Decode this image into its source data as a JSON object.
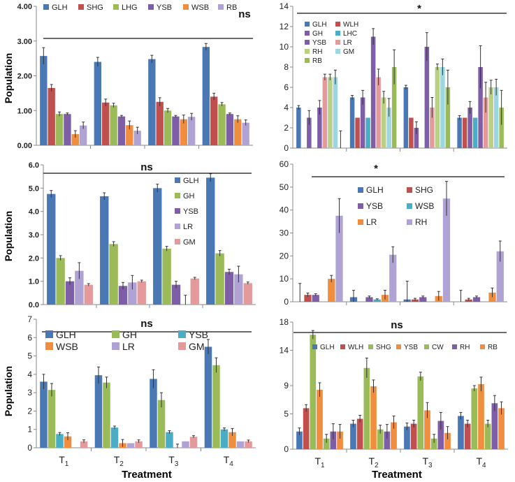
{
  "figure": {
    "ylabel": "Population",
    "xlabel": "Treatment"
  },
  "colors": {
    "GLH": "#4a78b5",
    "SHG": "#c0504d",
    "LHG": "#9bbb59",
    "YSB": "#7f5ea8",
    "WSB": "#f08d3e",
    "RB": "#b0a3d3",
    "WLH": "#c0504d",
    "GH": "#7f5ea8",
    "LHC": "#4bacc6",
    "LR": "#e49a9a",
    "RH": "#b8cf84",
    "GM": "#9dd6e1",
    "CW": "#9bbb59"
  },
  "chart_data": [
    {
      "type": "bar",
      "sig": "ns",
      "categories": [
        "T1",
        "T2",
        "T3",
        "T4"
      ],
      "ylim": [
        0,
        4
      ],
      "yticks": [
        0,
        1,
        2,
        3,
        4
      ],
      "yfmt": 2,
      "legend_layout": "top-row",
      "series": [
        {
          "name": "GLH",
          "key": "GLH",
          "values": [
            2.57,
            2.4,
            2.48,
            2.83
          ],
          "err": [
            0.24,
            0.13,
            0.11,
            0.1
          ]
        },
        {
          "name": "SHG",
          "key": "SHG",
          "values": [
            1.65,
            1.23,
            1.25,
            1.4
          ],
          "err": [
            0.1,
            0.1,
            0.12,
            0.1
          ]
        },
        {
          "name": "LHG",
          "key": "LHG",
          "values": [
            0.9,
            1.15,
            1.0,
            1.18
          ],
          "err": [
            0.06,
            0.06,
            0.06,
            0.05
          ]
        },
        {
          "name": "YSB",
          "key": "YSB",
          "values": [
            0.9,
            0.83,
            0.83,
            0.9
          ],
          "err": [
            0.03,
            0.03,
            0.03,
            0.03
          ]
        },
        {
          "name": "WSB",
          "key": "WSB",
          "values": [
            0.32,
            0.58,
            0.75,
            0.75
          ],
          "err": [
            0.1,
            0.12,
            0.12,
            0.1
          ]
        },
        {
          "name": "RB",
          "key": "RB",
          "values": [
            0.57,
            0.42,
            0.82,
            0.65
          ],
          "err": [
            0.1,
            0.1,
            0.1,
            0.08
          ]
        }
      ]
    },
    {
      "type": "bar",
      "sig": "*",
      "categories": [
        "T1",
        "T2",
        "T3",
        "T4"
      ],
      "ylim": [
        0,
        14
      ],
      "yticks": [
        0,
        2,
        4,
        6,
        8,
        10,
        12,
        14
      ],
      "yfmt": 0,
      "legend_layout": "grid2",
      "series": [
        {
          "name": "GLH",
          "key": "GLH",
          "values": [
            4,
            5,
            6,
            3
          ],
          "err": [
            0.2,
            0.2,
            0.2,
            0.2
          ]
        },
        {
          "name": "WLH",
          "key": "WLH",
          "values": [
            0,
            3,
            3,
            3
          ],
          "err": [
            0,
            0,
            0,
            0
          ]
        },
        {
          "name": "GH",
          "key": "GH",
          "values": [
            3,
            5,
            2,
            4
          ],
          "err": [
            0.7,
            0.7,
            0.6,
            0.6
          ]
        },
        {
          "name": "LHC",
          "key": "LHC",
          "values": [
            0,
            3,
            0,
            3
          ],
          "err": [
            0,
            0,
            0,
            0
          ]
        },
        {
          "name": "YSB",
          "key": "YSB",
          "values": [
            4,
            11,
            10,
            8
          ],
          "err": [
            0.7,
            0.8,
            1.4,
            2.1
          ]
        },
        {
          "name": "LR",
          "key": "LR",
          "values": [
            7,
            7,
            4,
            5
          ],
          "err": [
            0.3,
            0.8,
            1.0,
            1.5
          ]
        },
        {
          "name": "RH",
          "key": "RH",
          "values": [
            7,
            5,
            8,
            6
          ],
          "err": [
            0.3,
            0.6,
            0.3,
            0.7
          ]
        },
        {
          "name": "GM",
          "key": "GM",
          "values": [
            7,
            4,
            8,
            6
          ],
          "err": [
            0.7,
            0.9,
            0.8,
            0.8
          ]
        },
        {
          "name": "RB",
          "key": "LHG",
          "values": [
            0,
            8,
            6,
            4
          ],
          "err": [
            1.7,
            1.7,
            1.7,
            1.7
          ]
        }
      ]
    },
    {
      "type": "bar",
      "sig": "ns",
      "categories": [
        "T1",
        "T2",
        "T3",
        "T4"
      ],
      "ylim": [
        0,
        6
      ],
      "yticks": [
        0,
        1,
        2,
        3,
        4,
        5,
        6
      ],
      "yfmt": 1,
      "legend_layout": "column",
      "series": [
        {
          "name": "GLH",
          "key": "GLH",
          "values": [
            4.75,
            4.65,
            5.0,
            5.45
          ],
          "err": [
            0.15,
            0.15,
            0.17,
            0.17
          ]
        },
        {
          "name": "GH",
          "key": "LHG",
          "values": [
            2.0,
            2.6,
            2.4,
            2.2
          ],
          "err": [
            0.1,
            0.1,
            0.1,
            0.12
          ]
        },
        {
          "name": "YSB",
          "key": "YSB",
          "values": [
            1.0,
            0.8,
            0.85,
            1.4
          ],
          "err": [
            0.15,
            0.15,
            0.15,
            0.12
          ]
        },
        {
          "name": "LR",
          "key": "RB",
          "values": [
            1.45,
            0.95,
            0.0,
            1.3
          ],
          "err": [
            0.35,
            0.3,
            0.4,
            0.35
          ]
        },
        {
          "name": "GM",
          "key": "LR",
          "values": [
            0.85,
            1.0,
            1.12,
            0.92
          ],
          "err": [
            0.05,
            0.05,
            0.05,
            0.05
          ]
        }
      ]
    },
    {
      "type": "bar",
      "sig": "*",
      "categories": [
        "T1",
        "T2",
        "T3",
        "T4"
      ],
      "ylim": [
        0,
        60
      ],
      "yticks": [
        0,
        10,
        20,
        30,
        40,
        50,
        60
      ],
      "yfmt": 0,
      "legend_layout": "grid2",
      "series": [
        {
          "name": "GLH",
          "key": "GLH",
          "values": [
            0,
            2,
            1,
            0
          ],
          "err": [
            8,
            3,
            8,
            5
          ]
        },
        {
          "name": "SHG",
          "key": "SHG",
          "values": [
            3,
            0,
            1,
            1
          ],
          "err": [
            0.8,
            0,
            0.5,
            0.5
          ]
        },
        {
          "name": "YSB",
          "key": "YSB",
          "values": [
            3,
            2,
            2,
            2
          ],
          "err": [
            0.5,
            0.5,
            0.5,
            0.5
          ]
        },
        {
          "name": "WSB",
          "key": "LHC",
          "values": [
            0,
            1,
            0,
            0
          ],
          "err": [
            0,
            0.3,
            0,
            0
          ]
        },
        {
          "name": "LR",
          "key": "WSB",
          "values": [
            10,
            3,
            2.5,
            4
          ],
          "err": [
            1.5,
            2,
            2,
            2
          ]
        },
        {
          "name": "RH",
          "key": "RB",
          "values": [
            37.5,
            20.5,
            45,
            22
          ],
          "err": [
            7.5,
            3.5,
            7.5,
            4.5
          ]
        }
      ]
    },
    {
      "type": "bar",
      "sig": "ns",
      "categories": [
        "T1",
        "T2",
        "T3",
        "T4"
      ],
      "ylim": [
        0,
        7
      ],
      "yticks": [
        0,
        1,
        2,
        3,
        4,
        5,
        6,
        7
      ],
      "yfmt": 0,
      "legend_layout": "grid3",
      "series": [
        {
          "name": "GLH",
          "key": "GLH",
          "values": [
            3.6,
            3.95,
            3.75,
            5.5
          ],
          "err": [
            0.4,
            0.45,
            0.5,
            0.4
          ]
        },
        {
          "name": "GH",
          "key": "LHG",
          "values": [
            3.15,
            3.55,
            2.6,
            4.5
          ],
          "err": [
            0.35,
            0.3,
            0.4,
            0.4
          ]
        },
        {
          "name": "YSB",
          "key": "LHC",
          "values": [
            0.75,
            1.1,
            0.85,
            1.0
          ],
          "err": [
            0.08,
            0.08,
            0.08,
            0.08
          ]
        },
        {
          "name": "WSB",
          "key": "WSB",
          "values": [
            0.62,
            0.25,
            0.0,
            0.85
          ],
          "err": [
            0.2,
            0.2,
            0.2,
            0.2
          ]
        },
        {
          "name": "LR",
          "key": "RB",
          "values": [
            0.0,
            0.25,
            0.35,
            0.35
          ],
          "err": [
            0,
            0,
            0,
            0
          ]
        },
        {
          "name": "GM",
          "key": "LR",
          "values": [
            0.35,
            0.35,
            0.6,
            0.35
          ],
          "err": [
            0.08,
            0.08,
            0.06,
            0.07
          ]
        }
      ]
    },
    {
      "type": "bar",
      "sig": "ns",
      "categories": [
        "T1",
        "T2",
        "T3",
        "T4"
      ],
      "ylim": [
        0,
        18
      ],
      "yticks": [
        0,
        5,
        9,
        14,
        18
      ],
      "yfmt": 0,
      "legend_layout": "row7",
      "series": [
        {
          "name": "GLH",
          "key": "GLH",
          "values": [
            2.5,
            3.6,
            3.2,
            4.7
          ],
          "err": [
            0.5,
            0.5,
            0.5,
            0.5
          ]
        },
        {
          "name": "WLH",
          "key": "SHG",
          "values": [
            5.8,
            4.3,
            3.6,
            3.6
          ],
          "err": [
            0.5,
            0.5,
            0.5,
            0.5
          ]
        },
        {
          "name": "SHG",
          "key": "LHG",
          "values": [
            16.2,
            11.5,
            10.3,
            8.6
          ],
          "err": [
            0.6,
            1.4,
            0.6,
            0.4
          ]
        },
        {
          "name": "YSB",
          "key": "WSB",
          "values": [
            8.4,
            8.9,
            5.5,
            9.2
          ],
          "err": [
            1.0,
            0.9,
            1.1,
            1.0
          ]
        },
        {
          "name": "CW",
          "key": "CW",
          "values": [
            1.5,
            2.8,
            1.5,
            3.6
          ],
          "err": [
            0.6,
            0.6,
            0.6,
            0.5
          ]
        },
        {
          "name": "RH",
          "key": "YSB",
          "values": [
            2.5,
            2.5,
            4.0,
            6.5
          ],
          "err": [
            1.1,
            1.0,
            1.2,
            1.1
          ]
        },
        {
          "name": "RB",
          "key": "WSB",
          "values": [
            2.5,
            3.8,
            2.3,
            5.8
          ],
          "err": [
            1.0,
            0.9,
            0.9,
            0.9
          ]
        }
      ]
    }
  ]
}
